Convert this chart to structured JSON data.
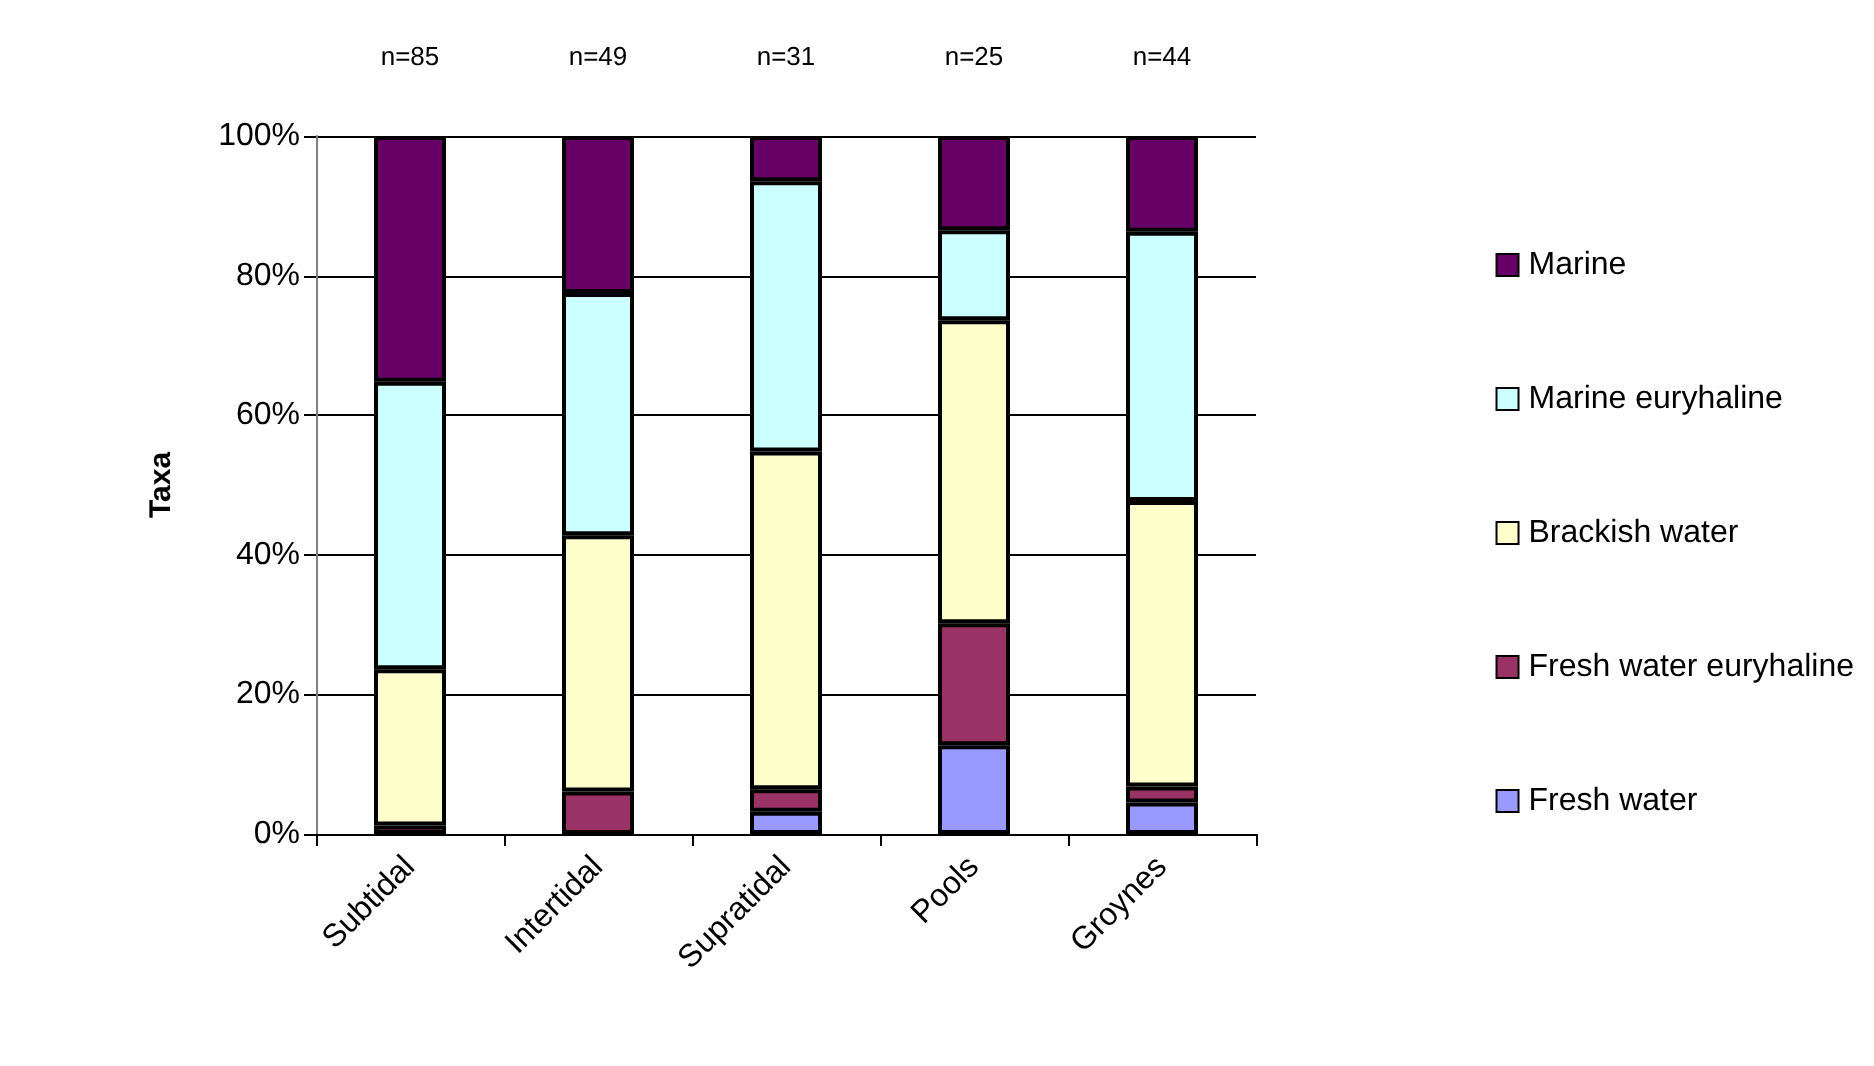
{
  "chart_data": {
    "type": "bar",
    "stacked": true,
    "ylabel": "Taxa",
    "categories": [
      "Subtidal",
      "Intertidal",
      "Supratidal",
      "Pools",
      "Groynes"
    ],
    "series": [
      {
        "name": "Fresh water",
        "color": "#9999ff",
        "values": [
          0,
          0,
          3.2,
          12.7,
          4.5
        ]
      },
      {
        "name": "Fresh water euryhaline",
        "color": "#993366",
        "values": [
          1.2,
          6.1,
          3.2,
          17.5,
          2.3
        ]
      },
      {
        "name": "Brackish water",
        "color": "#ffffcc",
        "values": [
          22.4,
          36.7,
          48.4,
          43.4,
          40.9
        ]
      },
      {
        "name": "Marine euryhaline",
        "color": "#ccffff",
        "values": [
          41.2,
          34.7,
          38.7,
          12.9,
          38.6
        ]
      },
      {
        "name": "Marine",
        "color": "#660066",
        "values": [
          35.2,
          22.5,
          6.5,
          13.5,
          13.7
        ]
      }
    ],
    "ylim": [
      0,
      100
    ],
    "yticks": [
      {
        "value": 0,
        "label": "0%"
      },
      {
        "value": 20,
        "label": "20%"
      },
      {
        "value": 40,
        "label": "40%"
      },
      {
        "value": 60,
        "label": "60%"
      },
      {
        "value": 80,
        "label": "80%"
      },
      {
        "value": 100,
        "label": "100%"
      }
    ],
    "annotations": [
      "n=85",
      "n=49",
      "n=31",
      "n=25",
      "n=44"
    ],
    "grid": "y",
    "legend": "right"
  }
}
